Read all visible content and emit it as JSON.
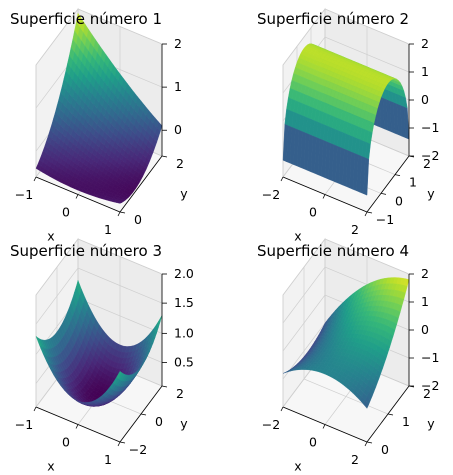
{
  "chart_data": [
    {
      "type": "surface3d",
      "title": "Superficie número 1",
      "xlabel": "x",
      "ylabel": "y",
      "zlabel": "",
      "colormap": "viridis",
      "xlim": [
        -1,
        1
      ],
      "ylim": [
        0,
        2
      ],
      "zlim": [
        -0.6,
        2
      ],
      "xticks": [
        "−1",
        "0",
        "1"
      ],
      "yticks": [
        "0",
        "2"
      ],
      "zticks": [
        "0",
        "1",
        "2"
      ],
      "surface_shape": "saddle-like sheet rising toward x=-1, y=2"
    },
    {
      "type": "surface3d",
      "title": "Superficie número 2",
      "xlabel": "x",
      "ylabel": "y",
      "zlabel": "",
      "colormap": "viridis",
      "xlim": [
        -2,
        2
      ],
      "ylim": [
        -1,
        2
      ],
      "zlim": [
        -2,
        2
      ],
      "xticks": [
        "−2",
        "0",
        "2"
      ],
      "yticks": [
        "−1",
        "0",
        "1",
        "2"
      ],
      "zticks": [
        "−2",
        "−1",
        "0",
        "1",
        "2"
      ],
      "surface_shape": "half-cylinder arch along x"
    },
    {
      "type": "surface3d",
      "title": "Superficie número 3",
      "xlabel": "x",
      "ylabel": "y",
      "zlabel": "",
      "colormap": "viridis",
      "xlim": [
        -1,
        1
      ],
      "ylim": [
        -2,
        2
      ],
      "zlim": [
        0.1,
        2.0
      ],
      "xticks": [
        "−1",
        "0",
        "1"
      ],
      "yticks": [
        "−2",
        "0",
        "2"
      ],
      "zticks": [
        "0.5",
        "1.0",
        "1.5",
        "2.0"
      ],
      "surface_shape": "paraboloid bowl"
    },
    {
      "type": "surface3d",
      "title": "Superficie número 4",
      "xlabel": "x",
      "ylabel": "y",
      "zlabel": "",
      "colormap": "viridis",
      "xlim": [
        -2,
        2
      ],
      "ylim": [
        0,
        2
      ],
      "zlim": [
        -2,
        2
      ],
      "xticks": [
        "−2",
        "0",
        "2"
      ],
      "yticks": [
        "0",
        "1",
        "2"
      ],
      "zticks": [
        "−2",
        "−1",
        "0",
        "1",
        "2"
      ],
      "surface_shape": "twisted sheet"
    }
  ]
}
